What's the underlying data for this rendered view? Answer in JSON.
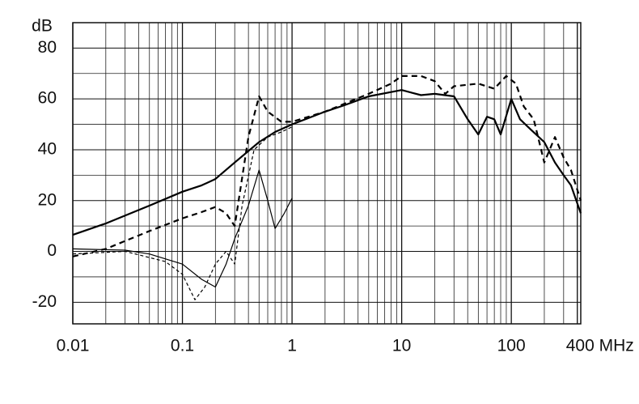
{
  "chart_data": {
    "type": "line",
    "y_label": "dB",
    "xscale": "log",
    "xlim": [
      0.01,
      430
    ],
    "ylim": [
      -28.5,
      90
    ],
    "xticks": [
      0.01,
      0.1,
      1,
      10,
      100,
      {
        "value": 400,
        "label": "400 MHz"
      }
    ],
    "yticks": [
      -20,
      0,
      20,
      40,
      60,
      80
    ],
    "grid": true,
    "series": [
      {
        "color": "#000000",
        "width": 2.2,
        "dash": "none",
        "x": [
          0.01,
          0.02,
          0.05,
          0.1,
          0.15,
          0.2,
          0.3,
          0.5,
          0.7,
          1,
          2,
          3,
          5,
          10,
          15,
          20,
          30,
          40,
          50,
          60,
          70,
          80,
          100,
          120,
          150,
          200,
          250,
          300,
          350,
          430
        ],
        "values": [
          6.5,
          11,
          18,
          23.5,
          26,
          28.5,
          35,
          43,
          47,
          50,
          55,
          57.5,
          61,
          63.5,
          61.5,
          62,
          61,
          52,
          46,
          53,
          52,
          46,
          60,
          52,
          48,
          43,
          35,
          30,
          26,
          15
        ]
      },
      {
        "color": "#000000",
        "width": 2.2,
        "dash": "7 5",
        "x": [
          0.01,
          0.02,
          0.05,
          0.1,
          0.15,
          0.2,
          0.25,
          0.3,
          0.4,
          0.5,
          0.6,
          0.8,
          1,
          2,
          5,
          8,
          10,
          15,
          20,
          25,
          30,
          50,
          70,
          90,
          110,
          130,
          160,
          200,
          250,
          300,
          350,
          430
        ],
        "values": [
          -2,
          1,
          8,
          13,
          15.5,
          17.5,
          15,
          10,
          45,
          61,
          55,
          51,
          51,
          55,
          62,
          66,
          69,
          69,
          67,
          62,
          65,
          66,
          64,
          69,
          66,
          57,
          52,
          35,
          45,
          37,
          32,
          20
        ]
      },
      {
        "color": "#000000",
        "width": 1.2,
        "dash": "none",
        "x": [
          0.01,
          0.03,
          0.05,
          0.1,
          0.15,
          0.2,
          0.25,
          0.3,
          0.4,
          0.5,
          0.6,
          0.7,
          0.85,
          1
        ],
        "values": [
          1,
          0.5,
          -1,
          -5,
          -11,
          -14,
          -5,
          5,
          18,
          32,
          20,
          9,
          15,
          21
        ]
      },
      {
        "color": "#000000",
        "width": 1.2,
        "dash": "4 3",
        "x": [
          0.01,
          0.03,
          0.07,
          0.1,
          0.13,
          0.16,
          0.2,
          0.25,
          0.3,
          0.35,
          0.45,
          0.6,
          0.8,
          1
        ],
        "values": [
          -1,
          0,
          -4,
          -9,
          -19,
          -14,
          -5,
          0,
          -5,
          18,
          40,
          45,
          47,
          49
        ]
      }
    ]
  }
}
